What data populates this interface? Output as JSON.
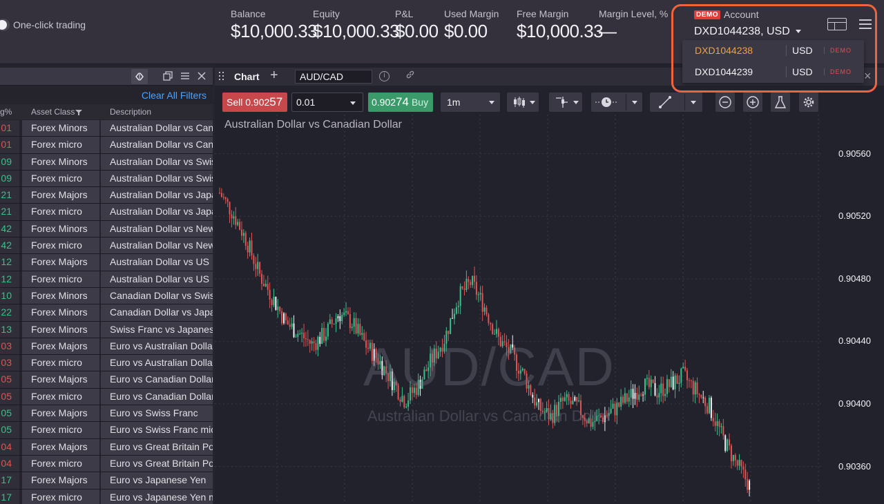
{
  "topbar": {
    "one_click_label": "One-click trading",
    "metrics": [
      {
        "label": "Balance",
        "value": "$10,000.33"
      },
      {
        "label": "Equity",
        "value": "$10,000.33"
      },
      {
        "label": "P&L",
        "value": "$0.00"
      },
      {
        "label": "Used Margin",
        "value": "$0.00"
      },
      {
        "label": "Free Margin",
        "value": "$10,000.33"
      },
      {
        "label": "Margin Level, %",
        "value": "—"
      }
    ],
    "account": {
      "badge": "DEMO",
      "title": "Account",
      "current": "DXD1044238, USD",
      "options": [
        {
          "id": "DXD1044238",
          "currency": "USD",
          "badge": "DEMO",
          "selected": true
        },
        {
          "id": "DXD1044239",
          "currency": "USD",
          "badge": "DEMO",
          "selected": false
        }
      ]
    }
  },
  "left_panel": {
    "clear_filters": "Clear All Filters",
    "columns": {
      "change": "g%",
      "asset_class": "Asset Class",
      "description": "Description"
    },
    "rows": [
      {
        "chg": "01",
        "dir": "red",
        "asset": "Forex Minors",
        "desc": "Australian Dollar vs Canadian Dollar"
      },
      {
        "chg": "01",
        "dir": "red",
        "asset": "Forex micro",
        "desc": "Australian Dollar vs Canadian Dollar"
      },
      {
        "chg": "09",
        "dir": "green",
        "asset": "Forex Minors",
        "desc": "Australian Dollar vs Swiss Franc"
      },
      {
        "chg": "09",
        "dir": "green",
        "asset": "Forex micro",
        "desc": "Australian Dollar vs Swiss Franc"
      },
      {
        "chg": "21",
        "dir": "green",
        "asset": "Forex Majors",
        "desc": "Australian Dollar vs Japanese Yen"
      },
      {
        "chg": "21",
        "dir": "green",
        "asset": "Forex micro",
        "desc": "Australian Dollar vs Japanese Yen"
      },
      {
        "chg": "42",
        "dir": "green",
        "asset": "Forex Minors",
        "desc": "Australian Dollar vs New Zealand Dollar"
      },
      {
        "chg": "42",
        "dir": "green",
        "asset": "Forex micro",
        "desc": "Australian Dollar vs New Zealand Dollar"
      },
      {
        "chg": "12",
        "dir": "green",
        "asset": "Forex Majors",
        "desc": "Australian Dollar vs US Dollar"
      },
      {
        "chg": "12",
        "dir": "green",
        "asset": "Forex micro",
        "desc": "Australian Dollar vs US Dollar"
      },
      {
        "chg": "10",
        "dir": "green",
        "asset": "Forex Minors",
        "desc": "Canadian Dollar vs Swiss Franc"
      },
      {
        "chg": "22",
        "dir": "green",
        "asset": "Forex Minors",
        "desc": "Canadian Dollar vs Japanese Yen"
      },
      {
        "chg": "13",
        "dir": "green",
        "asset": "Forex Minors",
        "desc": "Swiss Franc vs Japanese Yen"
      },
      {
        "chg": "03",
        "dir": "red",
        "asset": "Forex Majors",
        "desc": "Euro vs Australian Dollar"
      },
      {
        "chg": "03",
        "dir": "red",
        "asset": "Forex micro",
        "desc": "Euro vs Australian Dollar"
      },
      {
        "chg": "05",
        "dir": "red",
        "asset": "Forex Majors",
        "desc": "Euro vs Canadian Dollar"
      },
      {
        "chg": "05",
        "dir": "red",
        "asset": "Forex micro",
        "desc": "Euro vs Canadian Dollar"
      },
      {
        "chg": "05",
        "dir": "green",
        "asset": "Forex Majors",
        "desc": "Euro vs Swiss Franc"
      },
      {
        "chg": "05",
        "dir": "green",
        "asset": "Forex micro",
        "desc": "Euro vs Swiss Franc micro"
      },
      {
        "chg": "04",
        "dir": "red",
        "asset": "Forex Majors",
        "desc": "Euro vs Great Britain Pound"
      },
      {
        "chg": "04",
        "dir": "red",
        "asset": "Forex micro",
        "desc": "Euro vs Great Britain Pound"
      },
      {
        "chg": "17",
        "dir": "green",
        "asset": "Forex Majors",
        "desc": "Euro vs Japanese Yen"
      },
      {
        "chg": "17",
        "dir": "green",
        "asset": "Forex micro",
        "desc": "Euro vs Japanese Yen micro"
      }
    ]
  },
  "chart_panel": {
    "title": "Chart",
    "symbol": "AUD/CAD",
    "sell": {
      "label": "Sell",
      "price_prefix": "0.902",
      "price_big": "57"
    },
    "quantity": "0.01",
    "buy": {
      "label": "Buy",
      "price_prefix": "0.902",
      "price_big": "74"
    },
    "timeframe": "1m",
    "description": "Australian Dollar vs Canadian Dollar",
    "watermark": "AUD/CAD",
    "watermark_sub": "Australian Dollar vs Canadian Dollar",
    "y_ticks": [
      "0.90560",
      "0.90520",
      "0.90480",
      "0.90440",
      "0.90400",
      "0.90360"
    ],
    "colors": {
      "up": "#3cc08a",
      "down": "#e05454",
      "neutral": "#f2f2f6"
    }
  },
  "chart_data": {
    "type": "candlestick",
    "title": "Australian Dollar vs Canadian Dollar",
    "y_ticks": [
      0.9056,
      0.9052,
      0.9048,
      0.9044,
      0.904,
      0.9036
    ],
    "ylim": [
      0.90336,
      0.90585
    ],
    "grid": true,
    "close_trend": [
      0.90535,
      0.90522,
      0.90505,
      0.90483,
      0.90468,
      0.90452,
      0.90445,
      0.90438,
      0.90445,
      0.90458,
      0.90452,
      0.90438,
      0.90428,
      0.90415,
      0.90402,
      0.90412,
      0.90428,
      0.90442,
      0.90468,
      0.90478,
      0.90462,
      0.90442,
      0.90432,
      0.90418,
      0.90398,
      0.90392,
      0.90402,
      0.90398,
      0.90388,
      0.90392,
      0.90398,
      0.90405,
      0.90412,
      0.90408,
      0.90412,
      0.90418,
      0.90408,
      0.90398,
      0.90378,
      0.90362,
      0.90348
    ]
  }
}
